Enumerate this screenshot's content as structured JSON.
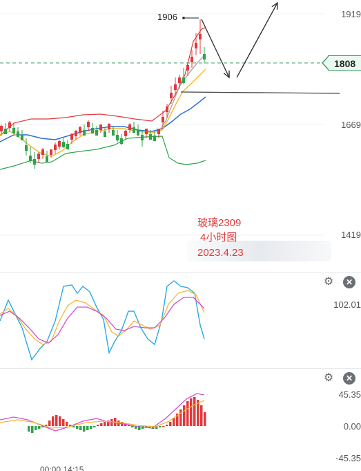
{
  "main": {
    "price_labels": [
      "1919",
      "1669",
      "1419"
    ],
    "current_price": "1808",
    "high_label": "1906",
    "annotation": {
      "line1": "玻璃2309",
      "line2": "4小时图",
      "line3": "2023.4.23"
    }
  },
  "kdj": {
    "axis_label": "102.01"
  },
  "macd": {
    "axis_labels": [
      "45.35",
      "0.00",
      "-45.35"
    ],
    "time_label": "00:00 14:15"
  },
  "icons": {
    "settings": "gear-icon",
    "close": "close-icon"
  },
  "colors": {
    "up": "#e0393b",
    "down": "#2fa34a",
    "ma_short": "#f5b731",
    "ma_mid": "#aaaaaa",
    "ma_long": "#2b6fd6",
    "boll_upper": "#e0393b",
    "boll_lower": "#2fa34a",
    "kdj_j": "#2aa8e6",
    "kdj_k": "#f5b731",
    "kdj_d": "#d14fd1"
  }
}
